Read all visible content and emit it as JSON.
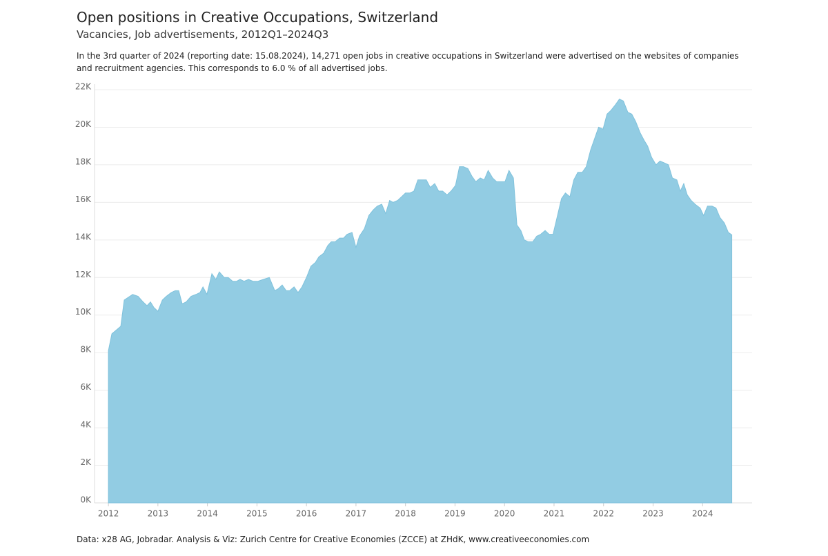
{
  "chart_data": {
    "type": "area",
    "title": "Open positions in Creative Occupations, Switzerland",
    "subtitle": "Vacancies, Job advertisements, 2012Q1–2024Q3",
    "description": "In the 3rd quarter of 2024 (reporting date: 15.08.2024), 14,271 open jobs in creative occupations in Switzerland were advertised on the websites of companies and recruitment agencies. This corresponds to 6.0 % of all advertised jobs.",
    "source": "Data: x28 AG, Jobradar. Analysis & Viz: Zurich Centre for Creative Economies (ZCCE) at ZHdK, www.creativeeconomies.com",
    "x": [
      2012.0,
      2012.07,
      2012.25,
      2012.32,
      2012.49,
      2012.6,
      2012.7,
      2012.78,
      2012.85,
      2012.92,
      2013.0,
      2013.09,
      2013.17,
      2013.27,
      2013.35,
      2013.42,
      2013.49,
      2013.57,
      2013.67,
      2013.77,
      2013.85,
      2013.91,
      2013.99,
      2014.09,
      2014.17,
      2014.24,
      2014.34,
      2014.42,
      2014.51,
      2014.59,
      2014.66,
      2014.74,
      2014.83,
      2014.92,
      2015.02,
      2015.13,
      2015.25,
      2015.36,
      2015.43,
      2015.51,
      2015.59,
      2015.66,
      2015.75,
      2015.83,
      2015.91,
      2016.0,
      2016.09,
      2016.18,
      2016.25,
      2016.35,
      2016.43,
      2016.5,
      2016.58,
      2016.67,
      2016.75,
      2016.82,
      2016.92,
      2017.0,
      2017.07,
      2017.17,
      2017.26,
      2017.35,
      2017.43,
      2017.52,
      2017.6,
      2017.68,
      2017.75,
      2017.84,
      2017.92,
      2018.0,
      2018.09,
      2018.17,
      2018.25,
      2018.34,
      2018.42,
      2018.5,
      2018.59,
      2018.67,
      2018.75,
      2018.84,
      2018.92,
      2019.01,
      2019.09,
      2019.17,
      2019.26,
      2019.34,
      2019.42,
      2019.51,
      2019.59,
      2019.67,
      2019.76,
      2019.84,
      2019.92,
      2020.01,
      2020.09,
      2020.18,
      2020.25,
      2020.33,
      2020.4,
      2020.48,
      2020.57,
      2020.65,
      2020.73,
      2020.82,
      2020.9,
      2020.98,
      2021.07,
      2021.15,
      2021.23,
      2021.32,
      2021.4,
      2021.48,
      2021.57,
      2021.65,
      2021.74,
      2021.82,
      2021.9,
      2021.99,
      2022.07,
      2022.15,
      2022.24,
      2022.32,
      2022.4,
      2022.49,
      2022.57,
      2022.65,
      2022.74,
      2022.82,
      2022.89,
      2022.97,
      2023.06,
      2023.14,
      2023.23,
      2023.31,
      2023.39,
      2023.48,
      2023.55,
      2023.62,
      2023.69,
      2023.77,
      2023.85,
      2023.95,
      2024.02,
      2024.1,
      2024.19,
      2024.27,
      2024.35,
      2024.44,
      2024.52,
      2024.59
    ],
    "values": [
      8100,
      9000,
      9400,
      10800,
      11100,
      11000,
      10700,
      10500,
      10700,
      10400,
      10200,
      10800,
      11000,
      11200,
      11300,
      11300,
      10600,
      10700,
      11000,
      11100,
      11200,
      11500,
      11100,
      12200,
      11900,
      12300,
      12000,
      12000,
      11800,
      11800,
      11900,
      11800,
      11900,
      11800,
      11800,
      11900,
      12000,
      11300,
      11400,
      11600,
      11300,
      11300,
      11500,
      11200,
      11500,
      12000,
      12600,
      12800,
      13100,
      13300,
      13700,
      13900,
      13900,
      14100,
      14100,
      14300,
      14400,
      13600,
      14200,
      14600,
      15300,
      15600,
      15800,
      15900,
      15400,
      16100,
      16000,
      16100,
      16300,
      16500,
      16500,
      16600,
      17200,
      17200,
      17200,
      16800,
      17000,
      16600,
      16600,
      16400,
      16600,
      16900,
      17900,
      17900,
      17800,
      17400,
      17100,
      17300,
      17200,
      17700,
      17300,
      17100,
      17100,
      17100,
      17700,
      17300,
      14800,
      14500,
      14000,
      13900,
      13900,
      14200,
      14300,
      14500,
      14300,
      14300,
      15300,
      16200,
      16500,
      16300,
      17200,
      17600,
      17600,
      17900,
      18800,
      19400,
      20000,
      19900,
      20700,
      20900,
      21200,
      21500,
      21400,
      20800,
      20700,
      20300,
      19700,
      19300,
      19000,
      18400,
      18000,
      18200,
      18100,
      18000,
      17300,
      17200,
      16600,
      17000,
      16400,
      16100,
      15900,
      15700,
      15300,
      15800,
      15800,
      15700,
      15200,
      14900,
      14400,
      14271
    ],
    "color": "#92cce3",
    "xlim": [
      2011.72,
      2025.0
    ],
    "xticks": [
      2012,
      2013,
      2014,
      2015,
      2016,
      2017,
      2018,
      2019,
      2020,
      2021,
      2022,
      2023,
      2024
    ],
    "ylim": [
      0,
      22000
    ],
    "yticks": [
      {
        "value": 0,
        "label": "0K"
      },
      {
        "value": 2000,
        "label": "2K"
      },
      {
        "value": 4000,
        "label": "4K"
      },
      {
        "value": 6000,
        "label": "6K"
      },
      {
        "value": 8000,
        "label": "8K"
      },
      {
        "value": 10000,
        "label": "10K"
      },
      {
        "value": 12000,
        "label": "12K"
      },
      {
        "value": 14000,
        "label": "14K"
      },
      {
        "value": 16000,
        "label": "16K"
      },
      {
        "value": 18000,
        "label": "18K"
      },
      {
        "value": 20000,
        "label": "20K"
      },
      {
        "value": 22000,
        "label": "22K"
      }
    ],
    "grid": true
  }
}
